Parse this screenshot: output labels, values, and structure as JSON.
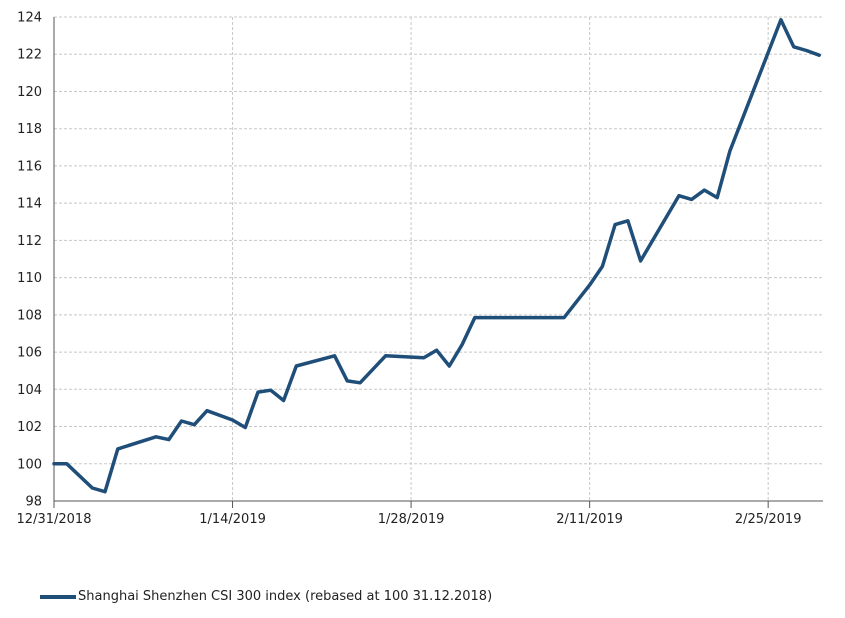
{
  "chart_data": {
    "type": "line",
    "x_labels": [
      "12/31/2018",
      "1/14/2019",
      "1/28/2019",
      "2/11/2019",
      "2/25/2019"
    ],
    "ylim": [
      98,
      124
    ],
    "y_ticks": [
      "98",
      "100",
      "102",
      "104",
      "106",
      "108",
      "110",
      "112",
      "114",
      "116",
      "118",
      "120",
      "122",
      "124"
    ],
    "grid": true,
    "legend_position": "bottom-left",
    "series": [
      {
        "name": "Shanghai Shenzhen CSI 300 index (rebased at 100 31.12.2018)",
        "color": "#1f4e79",
        "points": [
          [
            "2018-12-31",
            100.0
          ],
          [
            "2019-01-01",
            100.0
          ],
          [
            "2019-01-03",
            98.7
          ],
          [
            "2019-01-04",
            98.5
          ],
          [
            "2019-01-05",
            100.8
          ],
          [
            "2019-01-08",
            101.45
          ],
          [
            "2019-01-09",
            101.3
          ],
          [
            "2019-01-10",
            102.3
          ],
          [
            "2019-01-11",
            102.1
          ],
          [
            "2019-01-12",
            102.85
          ],
          [
            "2019-01-14",
            102.35
          ],
          [
            "2019-01-15",
            101.95
          ],
          [
            "2019-01-16",
            103.85
          ],
          [
            "2019-01-17",
            103.95
          ],
          [
            "2019-01-18",
            103.4
          ],
          [
            "2019-01-19",
            105.25
          ],
          [
            "2019-01-22",
            105.8
          ],
          [
            "2019-01-23",
            104.45
          ],
          [
            "2019-01-24",
            104.35
          ],
          [
            "2019-01-26",
            105.8
          ],
          [
            "2019-01-29",
            105.7
          ],
          [
            "2019-01-30",
            106.1
          ],
          [
            "2019-01-31",
            105.25
          ],
          [
            "2019-02-01",
            106.4
          ],
          [
            "2019-02-02",
            107.85
          ],
          [
            "2019-02-09",
            107.85
          ],
          [
            "2019-02-11",
            109.6
          ],
          [
            "2019-02-12",
            110.6
          ],
          [
            "2019-02-13",
            112.85
          ],
          [
            "2019-02-14",
            113.05
          ],
          [
            "2019-02-15",
            110.9
          ],
          [
            "2019-02-18",
            114.4
          ],
          [
            "2019-02-19",
            114.2
          ],
          [
            "2019-02-20",
            114.7
          ],
          [
            "2019-02-21",
            114.3
          ],
          [
            "2019-02-22",
            116.8
          ],
          [
            "2019-02-26",
            123.85
          ],
          [
            "2019-02-27",
            122.4
          ],
          [
            "2019-02-28",
            122.2
          ],
          [
            "2019-03-01",
            121.95
          ]
        ]
      }
    ]
  }
}
